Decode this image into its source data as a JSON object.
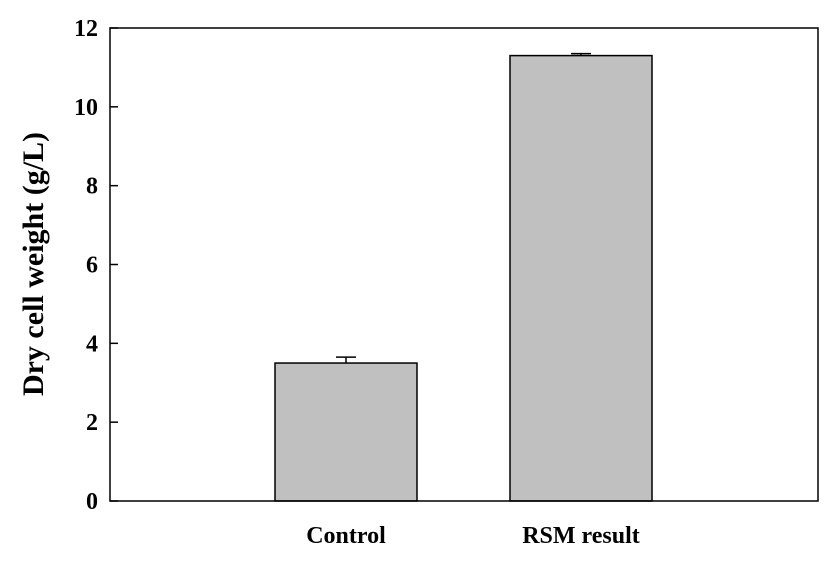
{
  "chart_data": {
    "type": "bar",
    "title": "",
    "xlabel": "",
    "ylabel": "Dry cell weight (g/L)",
    "categories": [
      "Control",
      "RSM result"
    ],
    "values": [
      3.5,
      11.3
    ],
    "errors": [
      0.15,
      0.05
    ],
    "ylim": [
      0,
      12
    ],
    "yticks": [
      0,
      2,
      4,
      6,
      8,
      10,
      12
    ],
    "grid": false,
    "legend": "none",
    "bar_color": "#c0c0c0",
    "edge_color": "#000000"
  }
}
